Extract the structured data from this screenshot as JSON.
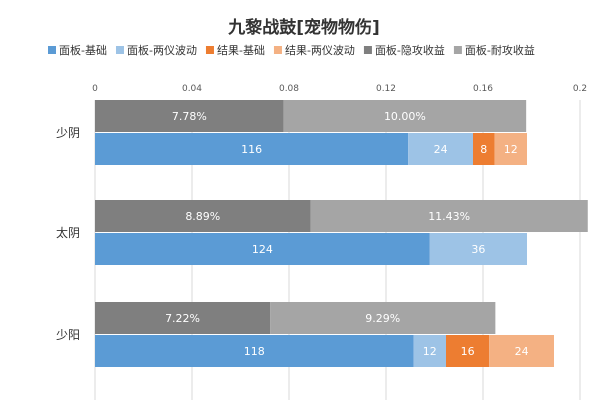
{
  "chart_data": {
    "type": "bar",
    "orientation": "horizontal",
    "stacked": true,
    "title": "九黎战鼓[宠物物伤]",
    "xlim": [
      0,
      0.2
    ],
    "x_ticks": [
      "0",
      "0.04",
      "0.08",
      "0.12",
      "0.16",
      "0.2"
    ],
    "grid": true,
    "legend_position": "top",
    "categories": [
      "少阴",
      "太阴",
      "少阳"
    ],
    "legend": [
      {
        "name": "面板-基础",
        "color": "#5b9bd5"
      },
      {
        "name": "面板-两仪波动",
        "color": "#9dc3e6"
      },
      {
        "name": "结果-基础",
        "color": "#ed7d31"
      },
      {
        "name": "结果-两仪波动",
        "color": "#f4b183"
      },
      {
        "name": "面板-隐攻收益",
        "color": "#7f7f7f"
      },
      {
        "name": "面板-耐攻收益",
        "color": "#a5a5a5"
      }
    ],
    "rows": [
      {
        "category": "少阴",
        "top": [
          {
            "series": "面板-隐攻收益",
            "value": 0.0778,
            "label": "7.78%"
          },
          {
            "series": "面板-耐攻收益",
            "value": 0.1,
            "label": "10.00%"
          }
        ],
        "bottom": [
          {
            "series": "面板-基础",
            "value": 116,
            "label": "116"
          },
          {
            "series": "面板-两仪波动",
            "value": 24,
            "label": "24"
          },
          {
            "series": "结果-基础",
            "value": 8,
            "label": "8"
          },
          {
            "series": "结果-两仪波动",
            "value": 12,
            "label": "12"
          }
        ]
      },
      {
        "category": "太阴",
        "top": [
          {
            "series": "面板-隐攻收益",
            "value": 0.0889,
            "label": "8.89%"
          },
          {
            "series": "面板-耐攻收益",
            "value": 0.1143,
            "label": "11.43%"
          }
        ],
        "bottom": [
          {
            "series": "面板-基础",
            "value": 124,
            "label": "124"
          },
          {
            "series": "面板-两仪波动",
            "value": 36,
            "label": "36"
          }
        ]
      },
      {
        "category": "少阳",
        "top": [
          {
            "series": "面板-隐攻收益",
            "value": 0.0722,
            "label": "7.22%"
          },
          {
            "series": "面板-耐攻收益",
            "value": 0.0929,
            "label": "9.29%"
          }
        ],
        "bottom": [
          {
            "series": "面板-基础",
            "value": 118,
            "label": "118"
          },
          {
            "series": "面板-两仪波动",
            "value": 12,
            "label": "12"
          },
          {
            "series": "结果-基础",
            "value": 16,
            "label": "16"
          },
          {
            "series": "结果-两仪波动",
            "value": 24,
            "label": "24"
          }
        ]
      }
    ]
  }
}
